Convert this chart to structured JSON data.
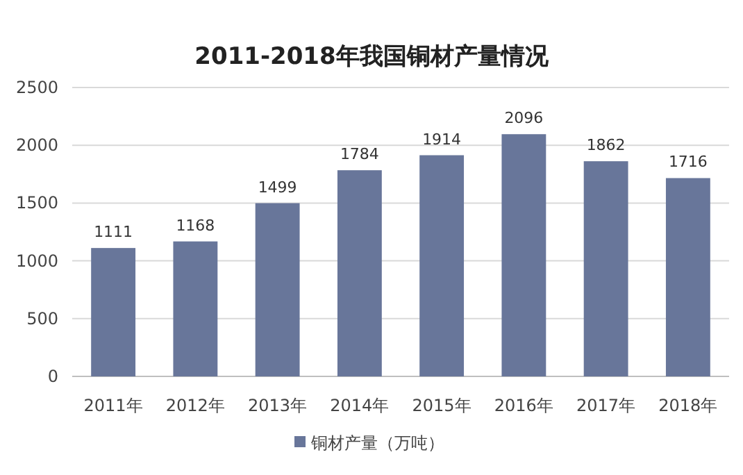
{
  "chart_data": {
    "type": "bar",
    "title": "2011-2018年我国铜材产量情况",
    "categories": [
      "2011年",
      "2012年",
      "2013年",
      "2014年",
      "2015年",
      "2016年",
      "2017年",
      "2018年"
    ],
    "series": [
      {
        "name": "铜材产量（万吨）",
        "color": "#68769a",
        "values": [
          1111,
          1168,
          1499,
          1784,
          1914,
          2096,
          1862,
          1716
        ]
      }
    ],
    "ylim": [
      0,
      2500
    ],
    "yticks": [
      0,
      500,
      1000,
      1500,
      2000,
      2500
    ],
    "grid": "y",
    "legend": "bottom",
    "data_labels": true
  }
}
